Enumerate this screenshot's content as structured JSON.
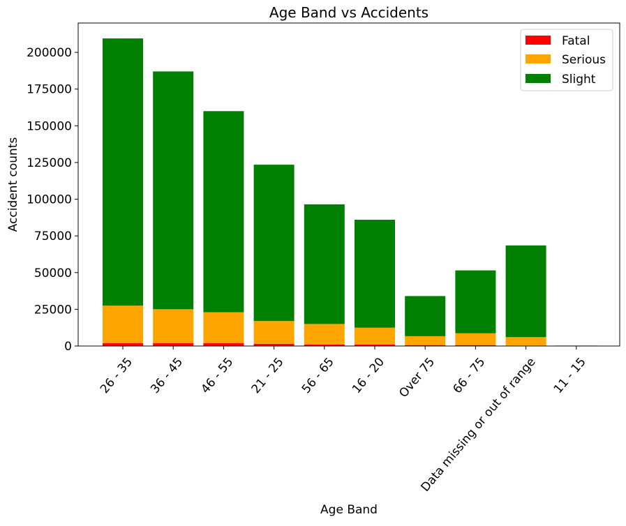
{
  "chart_data": {
    "type": "bar",
    "stacked": true,
    "title": "Age Band vs Accidents",
    "xlabel": "Age Band",
    "ylabel": "Accident counts",
    "ylim": [
      0,
      220000
    ],
    "yticks": [
      0,
      25000,
      50000,
      75000,
      100000,
      125000,
      150000,
      175000,
      200000
    ],
    "grid": false,
    "legend_position": "top-right",
    "categories": [
      "26 - 35",
      "36 - 45",
      "46 - 55",
      "21 - 25",
      "56 - 65",
      "16 - 20",
      "Over 75",
      "66 - 75",
      "Data missing or out of range",
      "11 - 15"
    ],
    "series": [
      {
        "name": "Fatal",
        "color": "#ff0000",
        "values": [
          2000,
          2000,
          2000,
          1500,
          1000,
          1000,
          600,
          600,
          300,
          0
        ]
      },
      {
        "name": "Serious",
        "color": "#ffa500",
        "values": [
          25500,
          23000,
          21000,
          15500,
          14000,
          11500,
          6100,
          8100,
          5700,
          0
        ]
      },
      {
        "name": "Slight",
        "color": "#008000",
        "values": [
          182000,
          162000,
          137000,
          106500,
          81500,
          73500,
          27300,
          42800,
          62500,
          300
        ]
      }
    ]
  }
}
